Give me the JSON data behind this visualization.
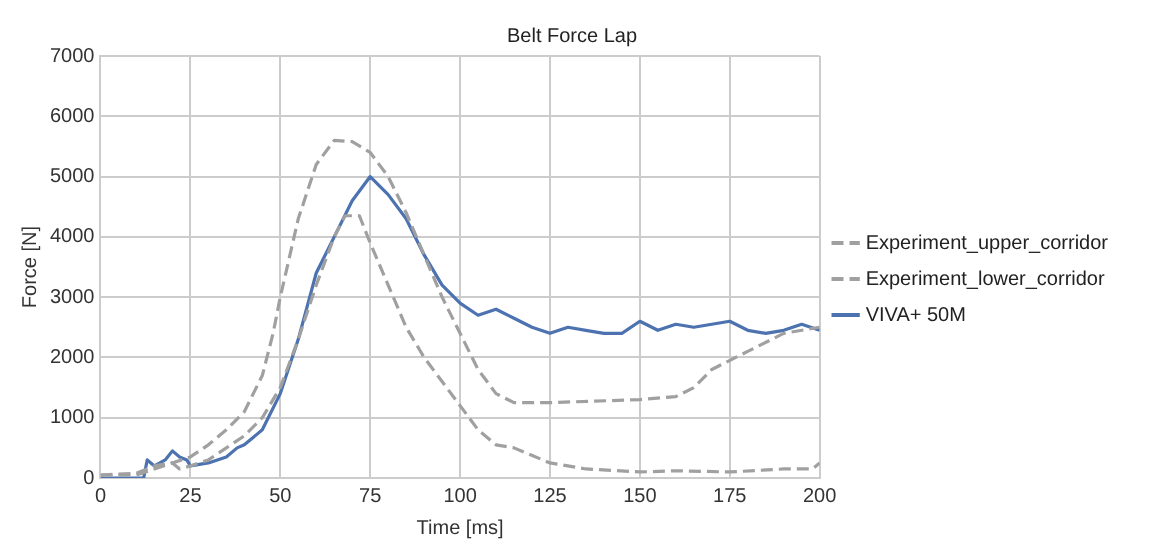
{
  "chart_data": {
    "type": "line",
    "title": "Belt Force Lap",
    "xlabel": "Time [ms]",
    "ylabel": "Force [N]",
    "xlim": [
      0,
      200
    ],
    "xticks": [
      0,
      25,
      50,
      75,
      100,
      125,
      150,
      175,
      200
    ],
    "ylim": [
      0,
      7000
    ],
    "yticks": [
      0,
      1000,
      2000,
      3000,
      4000,
      5000,
      6000,
      7000
    ],
    "grid": true,
    "legend": "right",
    "marker": "none",
    "series": [
      {
        "name": "Experiment_upper_corridor",
        "color": "#a0a0a0",
        "line_style": "dashed",
        "x": [
          0,
          10,
          15,
          20,
          25,
          30,
          35,
          40,
          45,
          48,
          50,
          55,
          60,
          65,
          70,
          75,
          80,
          85,
          90,
          95,
          100,
          105,
          110,
          115,
          125,
          150,
          160,
          165,
          170,
          180,
          190,
          200
        ],
        "values": [
          50,
          80,
          200,
          250,
          350,
          550,
          800,
          1100,
          1700,
          2400,
          3000,
          4300,
          5200,
          5600,
          5580,
          5400,
          5000,
          4400,
          3700,
          3000,
          2400,
          1800,
          1400,
          1250,
          1250,
          1300,
          1350,
          1500,
          1800,
          2100,
          2400,
          2500
        ]
      },
      {
        "name": "Experiment_lower_corridor",
        "color": "#a0a0a0",
        "line_style": "dashed",
        "x": [
          0,
          10,
          15,
          20,
          22,
          25,
          30,
          35,
          40,
          45,
          50,
          55,
          60,
          65,
          68,
          72,
          75,
          80,
          85,
          90,
          95,
          100,
          105,
          110,
          115,
          125,
          135,
          150,
          160,
          175,
          190,
          198,
          200
        ],
        "values": [
          50,
          50,
          150,
          250,
          150,
          200,
          300,
          500,
          700,
          1000,
          1500,
          2300,
          3200,
          4000,
          4350,
          4350,
          3900,
          3200,
          2500,
          2000,
          1600,
          1200,
          800,
          550,
          500,
          250,
          150,
          100,
          120,
          100,
          150,
          150,
          250
        ]
      },
      {
        "name": "VIVA+ 50M",
        "color": "#4c72b0",
        "line_style": "solid",
        "x": [
          0,
          12,
          13,
          15,
          18,
          20,
          22,
          24,
          25,
          30,
          35,
          38,
          40,
          45,
          50,
          55,
          60,
          65,
          70,
          75,
          80,
          85,
          90,
          95,
          100,
          105,
          110,
          115,
          120,
          125,
          130,
          135,
          140,
          145,
          150,
          155,
          160,
          165,
          170,
          175,
          180,
          185,
          190,
          195,
          200
        ],
        "values": [
          0,
          0,
          300,
          200,
          300,
          450,
          350,
          300,
          200,
          250,
          350,
          500,
          550,
          800,
          1400,
          2300,
          3400,
          4000,
          4600,
          5000,
          4700,
          4300,
          3700,
          3200,
          2900,
          2700,
          2800,
          2650,
          2500,
          2400,
          2500,
          2450,
          2400,
          2400,
          2600,
          2450,
          2550,
          2500,
          2550,
          2600,
          2450,
          2400,
          2450,
          2550,
          2450
        ]
      }
    ]
  }
}
